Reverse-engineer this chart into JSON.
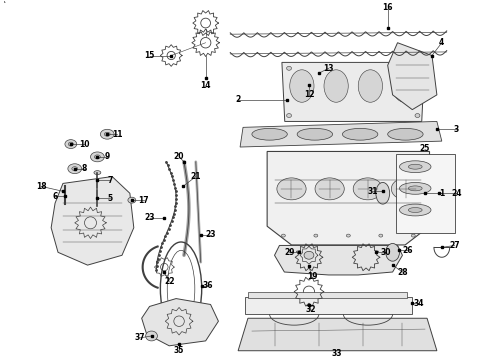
{
  "bg_color": "#ffffff",
  "fig_width": 4.9,
  "fig_height": 3.6,
  "dpi": 100,
  "line_color": "#404040",
  "font_size": 5.5,
  "label_color": "#000000"
}
